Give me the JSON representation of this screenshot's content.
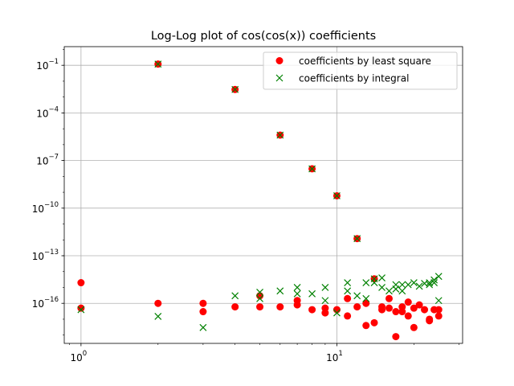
{
  "chart_data": {
    "type": "scatter",
    "title": "Log-Log plot of cos(cos(x)) coefficients",
    "xlabel": "",
    "ylabel": "",
    "xscale": "log",
    "yscale": "log",
    "xlim": [
      0.86,
      31
    ],
    "ylim": [
      3e-19,
      1.5
    ],
    "grid": true,
    "legend_position": "top-right",
    "x_ticks": [
      {
        "value": 1,
        "label": "10^0"
      },
      {
        "value": 10,
        "label": "10^1"
      }
    ],
    "y_ticks": [
      {
        "value": 1e-16,
        "label": "10^-16"
      },
      {
        "value": 1e-13,
        "label": "10^-13"
      },
      {
        "value": 1e-10,
        "label": "10^-10"
      },
      {
        "value": 1e-07,
        "label": "10^-7"
      },
      {
        "value": 0.0001,
        "label": "10^-4"
      },
      {
        "value": 0.1,
        "label": "10^-1"
      }
    ],
    "series": [
      {
        "name": "coefficients by least square",
        "marker": "circle",
        "color": "#ff0000",
        "points": [
          [
            1,
            2e-15
          ],
          [
            1,
            5e-17
          ],
          [
            2,
            0.12
          ],
          [
            2,
            1e-16
          ],
          [
            3,
            1e-16
          ],
          [
            3,
            3e-17
          ],
          [
            4,
            0.003
          ],
          [
            4,
            6e-17
          ],
          [
            5,
            3e-16
          ],
          [
            5,
            6e-17
          ],
          [
            6,
            4e-06
          ],
          [
            6,
            6e-17
          ],
          [
            7,
            1.5e-16
          ],
          [
            7,
            8e-17
          ],
          [
            8,
            3e-08
          ],
          [
            8,
            4e-17
          ],
          [
            9,
            5e-17
          ],
          [
            9,
            2.5e-17
          ],
          [
            10,
            6e-10
          ],
          [
            10,
            4e-17
          ],
          [
            11,
            2e-16
          ],
          [
            11,
            1.6e-17
          ],
          [
            12,
            1.2e-12
          ],
          [
            12,
            6e-17
          ],
          [
            13,
            1e-16
          ],
          [
            13,
            4e-18
          ],
          [
            14,
            3.5e-15
          ],
          [
            14,
            6e-18
          ],
          [
            15,
            4e-17
          ],
          [
            15,
            6e-17
          ],
          [
            16,
            2e-16
          ],
          [
            16,
            5e-17
          ],
          [
            17,
            3e-17
          ],
          [
            17,
            8e-19
          ],
          [
            18,
            3e-17
          ],
          [
            18,
            6e-17
          ],
          [
            19,
            1.2e-16
          ],
          [
            19,
            1.6e-17
          ],
          [
            20,
            3e-18
          ],
          [
            20,
            5e-17
          ],
          [
            21,
            8e-17
          ],
          [
            22,
            4e-17
          ],
          [
            23,
            1e-17
          ],
          [
            23,
            8e-18
          ],
          [
            24,
            4e-17
          ],
          [
            25,
            4e-17
          ],
          [
            25,
            1.6e-17
          ]
        ]
      },
      {
        "name": "coefficients by integral",
        "marker": "x",
        "color": "#008000",
        "points": [
          [
            1,
            4e-17
          ],
          [
            2,
            0.12
          ],
          [
            2,
            1.5e-17
          ],
          [
            3,
            3e-18
          ],
          [
            4,
            0.003
          ],
          [
            4,
            3e-16
          ],
          [
            5,
            5e-16
          ],
          [
            5,
            2e-16
          ],
          [
            6,
            4e-06
          ],
          [
            6,
            6e-16
          ],
          [
            7,
            1e-15
          ],
          [
            7,
            4e-16
          ],
          [
            8,
            3e-08
          ],
          [
            8,
            4e-16
          ],
          [
            9,
            1e-15
          ],
          [
            9,
            1.5e-16
          ],
          [
            10,
            6e-10
          ],
          [
            10,
            2.5e-17
          ],
          [
            11,
            2e-15
          ],
          [
            11,
            6e-16
          ],
          [
            12,
            1.2e-12
          ],
          [
            12,
            3e-16
          ],
          [
            13,
            2e-15
          ],
          [
            13,
            2e-16
          ],
          [
            14,
            3.5e-15
          ],
          [
            14,
            2e-15
          ],
          [
            15,
            4e-15
          ],
          [
            15,
            1e-15
          ],
          [
            16,
            6e-16
          ],
          [
            17,
            1.5e-15
          ],
          [
            17,
            8e-16
          ],
          [
            18,
            1.5e-15
          ],
          [
            18,
            6e-16
          ],
          [
            19,
            1.5e-15
          ],
          [
            20,
            2e-15
          ],
          [
            21,
            1.2e-15
          ],
          [
            22,
            1.8e-15
          ],
          [
            23,
            2e-15
          ],
          [
            23,
            1.5e-15
          ],
          [
            24,
            3e-15
          ],
          [
            24,
            2e-15
          ],
          [
            25,
            5e-15
          ],
          [
            25,
            1.5e-16
          ]
        ]
      }
    ]
  }
}
